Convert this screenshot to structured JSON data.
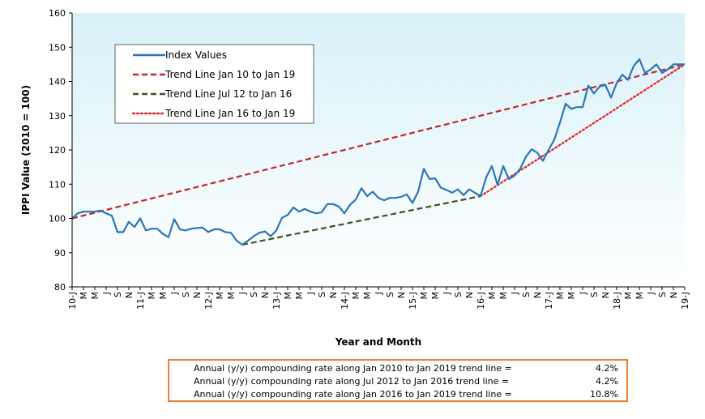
{
  "chart_data": {
    "type": "line",
    "ylabel": "IPPI Value (2010 = 100)",
    "xlabel": "Year and Month",
    "ylim": [
      80,
      160
    ],
    "yticks": [
      80,
      90,
      100,
      110,
      120,
      130,
      140,
      150,
      160
    ],
    "grid": false,
    "background_gradient": [
      "#d8f1f8",
      "#ffffff"
    ],
    "legend_position": "top-left",
    "x_tick_labels": [
      "10-J",
      "M",
      "M",
      "J",
      "S",
      "N",
      "11-J",
      "M",
      "M",
      "J",
      "S",
      "N",
      "12-J",
      "M",
      "M",
      "J",
      "S",
      "N",
      "13-J",
      "M",
      "M",
      "J",
      "S",
      "N",
      "14-J",
      "M",
      "M",
      "J",
      "S",
      "N",
      "15-J",
      "M",
      "M",
      "J",
      "S",
      "N",
      "16-J",
      "M",
      "M",
      "J",
      "S",
      "N",
      "17-J",
      "M",
      "M",
      "J",
      "S",
      "N",
      "18-J",
      "M",
      "M",
      "J",
      "S",
      "N",
      "19-J"
    ],
    "series": [
      {
        "name": "Index Values",
        "style": "solid",
        "color": "#2e75b6",
        "start_month_index": 0,
        "values": [
          100.0,
          101.5,
          102.0,
          102.0,
          102.0,
          102.3,
          101.5,
          100.8,
          96.0,
          96.0,
          99.0,
          97.5,
          100.0,
          96.5,
          97.0,
          97.0,
          95.5,
          94.5,
          99.8,
          96.8,
          96.5,
          97.0,
          97.2,
          97.3,
          96.0,
          96.8,
          96.8,
          96.0,
          95.8,
          93.5,
          92.3,
          93.5,
          94.8,
          95.8,
          96.2,
          94.8,
          96.5,
          100.2,
          101.0,
          103.2,
          102.0,
          102.8,
          102.0,
          101.5,
          101.8,
          104.2,
          104.2,
          103.5,
          101.5,
          104.0,
          105.5,
          108.8,
          106.5,
          107.8,
          106.0,
          105.3,
          106.0,
          106.0,
          106.3,
          107.0,
          104.5,
          107.8,
          114.5,
          111.5,
          111.7,
          109.0,
          108.3,
          107.5,
          108.5,
          106.8,
          108.5,
          107.5,
          106.5,
          112.0,
          115.3,
          109.8,
          115.3,
          111.5,
          112.5,
          114.5,
          118.0,
          120.2,
          119.2,
          116.8,
          120.0,
          123.0,
          128.0,
          133.5,
          132.0,
          132.5,
          132.5,
          138.8,
          136.5,
          138.5,
          139.0,
          135.3,
          139.5,
          142.0,
          140.5,
          144.5,
          146.5,
          142.5,
          143.5,
          145.0,
          142.5,
          143.5,
          145.0,
          145.0,
          145.0
        ]
      },
      {
        "name": "Trend Line Jan 10 to Jan 19",
        "style": "dashed",
        "color": "#c0282d",
        "x": [
          0,
          108
        ],
        "values": [
          100,
          145
        ]
      },
      {
        "name": "Trend Line Jul 12 to Jan 16",
        "style": "dashed",
        "color": "#375623",
        "x": [
          30,
          72
        ],
        "values": [
          92.3,
          106.5
        ]
      },
      {
        "name": "Trend Line Jan 16 to Jan 19",
        "style": "dotted",
        "color": "#e02424",
        "x": [
          72,
          108
        ],
        "values": [
          106.5,
          145
        ]
      }
    ]
  },
  "summary": {
    "rows": [
      {
        "label": "Annual (y/y) compounding rate along Jan 2010 to Jan 2019 trend line =",
        "value": "4.2%"
      },
      {
        "label": "Annual (y/y) compounding rate along Jul 2012 to Jan 2016 trend line =",
        "value": "4.2%"
      },
      {
        "label": "Annual (y/y) compounding rate along Jan 2016 to Jan 2019 trend line =",
        "value": "10.8%"
      }
    ],
    "border_color": "#ed7d31"
  }
}
